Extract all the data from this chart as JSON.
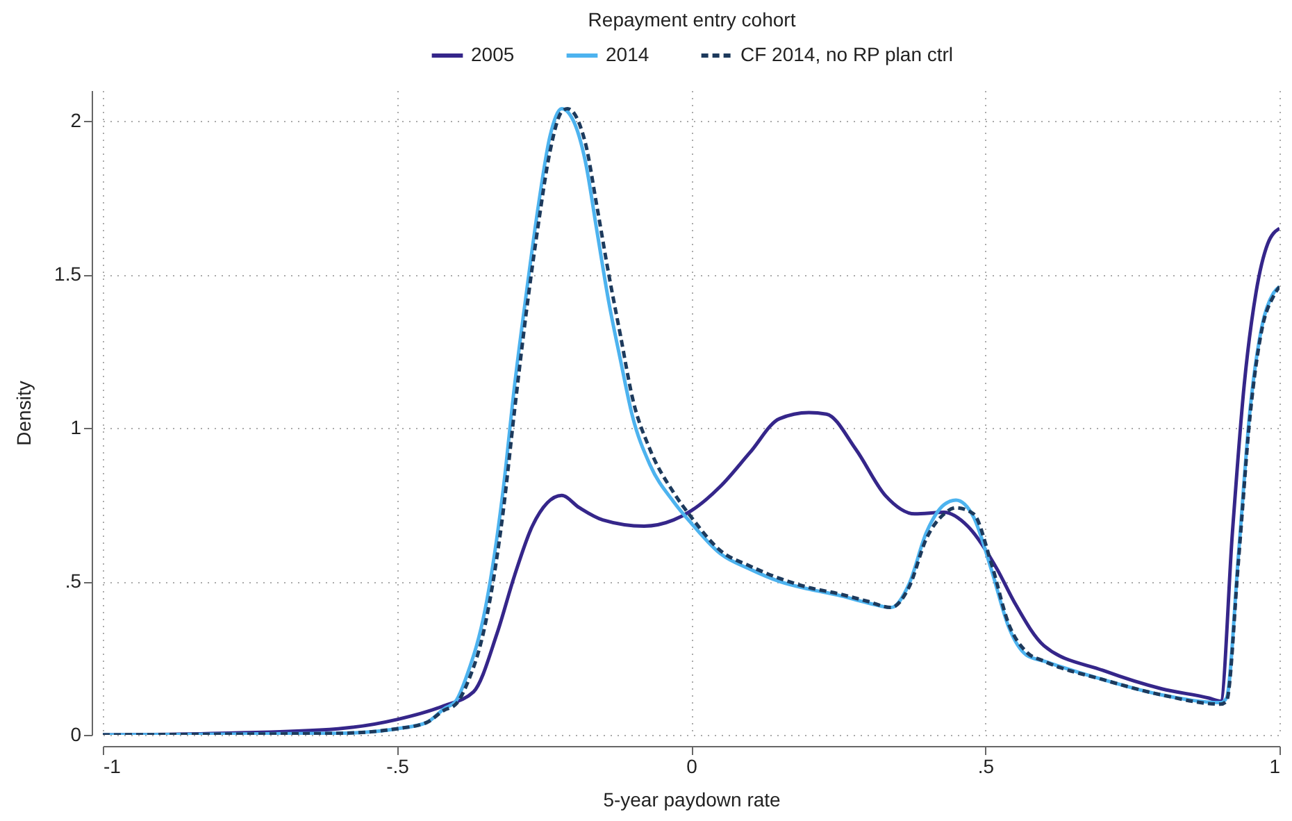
{
  "chart_data": {
    "type": "line",
    "xlabel": "5-year paydown rate",
    "ylabel": "Density",
    "legend_title": "Repayment entry cohort",
    "legend": "top",
    "grid": true,
    "marker": "none",
    "xlim": [
      -1,
      1
    ],
    "xticks": [
      {
        "value": -1,
        "label": "-1"
      },
      {
        "value": -0.5,
        "label": "-.5"
      },
      0,
      {
        "value": 0.5,
        "label": ".5"
      },
      1
    ],
    "ylim": [
      0,
      2.1
    ],
    "yticks": [
      0,
      {
        "value": 0.5,
        "label": ".5"
      },
      1,
      1.5,
      2
    ],
    "series": [
      {
        "name": "2005",
        "color": "#35268a",
        "line_style": "solid",
        "x": [
          -1,
          -0.8,
          -0.6,
          -0.5,
          -0.42,
          -0.37,
          -0.33,
          -0.3,
          -0.27,
          -0.22,
          -0.19,
          -0.15,
          -0.08,
          -0.03,
          0,
          0.05,
          0.1,
          0.15,
          0.2,
          0.23,
          0.28,
          0.33,
          0.38,
          0.43,
          0.47,
          0.52,
          0.55,
          0.6,
          0.7,
          0.8,
          0.88,
          0.9,
          0.92,
          0.94,
          0.96,
          0.98,
          1
        ],
        "values": [
          0,
          0.005,
          0.02,
          0.05,
          0.095,
          0.14,
          0.33,
          0.52,
          0.68,
          0.78,
          0.74,
          0.7,
          0.68,
          0.7,
          0.73,
          0.81,
          0.92,
          1.03,
          1.05,
          1.045,
          0.93,
          0.78,
          0.72,
          0.725,
          0.68,
          0.54,
          0.43,
          0.29,
          0.21,
          0.15,
          0.12,
          0.11,
          0.66,
          1.14,
          1.44,
          1.6,
          1.65
        ]
      },
      {
        "name": "2014",
        "color": "#4db3ef",
        "line_style": "solid",
        "x": [
          -1,
          -0.8,
          -0.6,
          -0.5,
          -0.45,
          -0.42,
          -0.4,
          -0.38,
          -0.35,
          -0.32,
          -0.3,
          -0.28,
          -0.26,
          -0.24,
          -0.22,
          -0.2,
          -0.18,
          -0.16,
          -0.14,
          -0.12,
          -0.1,
          -0.07,
          -0.03,
          0,
          0.05,
          0.1,
          0.15,
          0.2,
          0.25,
          0.3,
          0.34,
          0.37,
          0.4,
          0.43,
          0.45,
          0.48,
          0.51,
          0.54,
          0.57,
          0.6,
          0.7,
          0.8,
          0.9,
          0.91,
          0.93,
          0.95,
          0.97,
          0.99,
          1
        ],
        "values": [
          0,
          0.002,
          0.005,
          0.02,
          0.04,
          0.085,
          0.11,
          0.2,
          0.41,
          0.79,
          1.14,
          1.44,
          1.72,
          1.95,
          2.04,
          2,
          1.87,
          1.64,
          1.41,
          1.22,
          1.04,
          0.88,
          0.76,
          0.69,
          0.59,
          0.54,
          0.5,
          0.475,
          0.455,
          0.43,
          0.415,
          0.49,
          0.66,
          0.75,
          0.765,
          0.71,
          0.54,
          0.35,
          0.26,
          0.24,
          0.18,
          0.13,
          0.105,
          0.12,
          0.58,
          1.06,
          1.33,
          1.44,
          1.46
        ]
      },
      {
        "name": "CF 2014, no RP plan ctrl",
        "color": "#1d3a5c",
        "line_style": "dashed",
        "x": [
          -1,
          -0.8,
          -0.6,
          -0.5,
          -0.45,
          -0.42,
          -0.4,
          -0.38,
          -0.35,
          -0.32,
          -0.3,
          -0.28,
          -0.26,
          -0.24,
          -0.22,
          -0.21,
          -0.18,
          -0.16,
          -0.14,
          -0.12,
          -0.1,
          -0.07,
          -0.03,
          0,
          0.05,
          0.1,
          0.15,
          0.2,
          0.25,
          0.3,
          0.34,
          0.37,
          0.4,
          0.43,
          0.45,
          0.48,
          0.51,
          0.54,
          0.57,
          0.6,
          0.7,
          0.8,
          0.9,
          0.91,
          0.93,
          0.95,
          0.97,
          0.99,
          1
        ],
        "values": [
          0,
          0.002,
          0.005,
          0.02,
          0.04,
          0.08,
          0.1,
          0.17,
          0.36,
          0.72,
          1.06,
          1.38,
          1.66,
          1.9,
          2.03,
          2.04,
          1.93,
          1.72,
          1.5,
          1.3,
          1.1,
          0.93,
          0.79,
          0.71,
          0.6,
          0.55,
          0.51,
          0.48,
          0.46,
          0.435,
          0.415,
          0.48,
          0.64,
          0.72,
          0.74,
          0.72,
          0.56,
          0.36,
          0.27,
          0.24,
          0.18,
          0.13,
          0.1,
          0.11,
          0.56,
          1.04,
          1.32,
          1.43,
          1.46
        ]
      }
    ]
  }
}
